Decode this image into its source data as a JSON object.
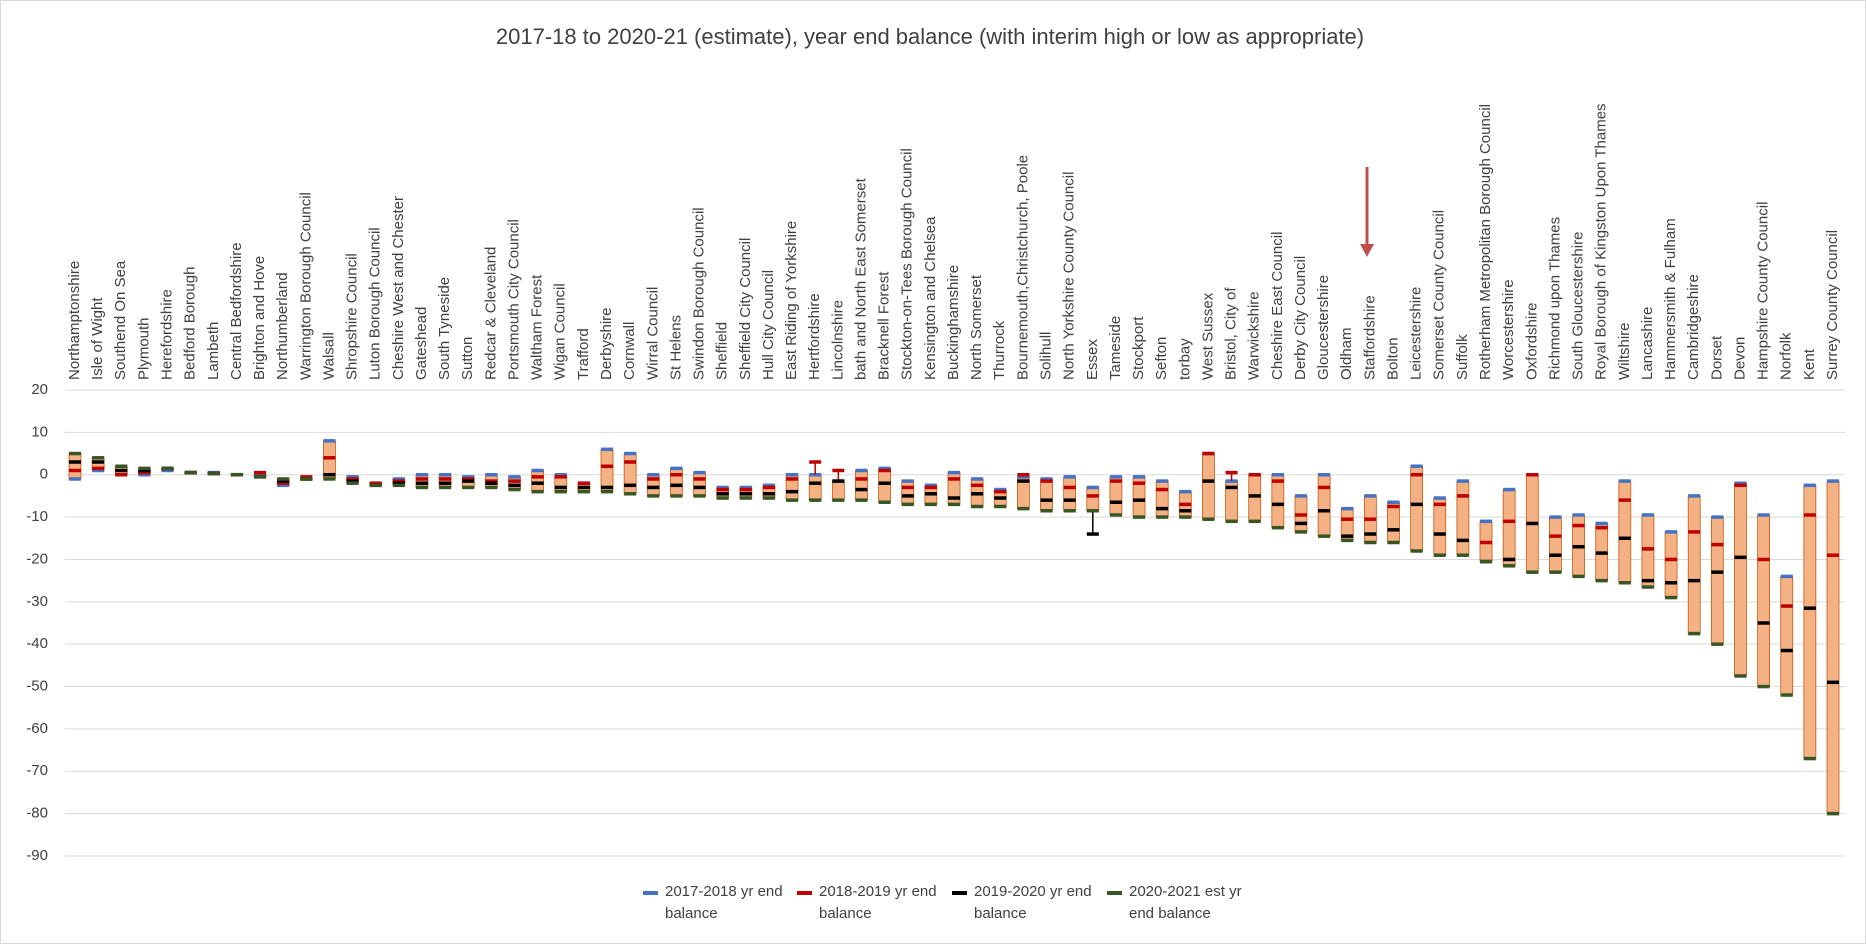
{
  "chart_data": {
    "type": "floating-bar",
    "title": "2017-18 to 2020-21 (estimate), year end balance (with interim high or low as appropriate)",
    "categories": [
      "Northamptonshire",
      "Isle of Wight",
      "Southend On Sea",
      "Plymouth",
      "Herefordshire",
      "Bedford Borough",
      "Lambeth",
      "Central Bedfordshire",
      "Brighton and Hove",
      "Northumberland",
      "Warrington Borough Council",
      "Walsall",
      "Shropshire Council",
      "Luton Borough Council",
      "Cheshire West and Chester",
      "Gateshead",
      "South Tyneside",
      "Sutton",
      "Redcar & Cleveland",
      "Portsmouth City Council",
      "Waltham Forest",
      "Wigan Council",
      "Trafford",
      "Derbyshire",
      "Cornwall",
      "Wirral Council",
      "St Helens",
      "Swindon Borough Council",
      "Sheffield",
      "Sheffield City Council",
      "Hull City Council",
      "East Riding of Yorkshire",
      "Hertfordshire",
      "Lincolnshire",
      "bath and North East Somerset",
      "Bracknell Forest",
      "Stockton-on-Tees Borough Council",
      "Kensington and Chelsea",
      "Buckinghamshire",
      "North Somerset",
      "Thurrock",
      "Bournemouth,Christchurch, Poole",
      "Solihull",
      "North Yorkshire County Council",
      "Essex",
      "Tameside",
      "Stockport",
      "Sefton",
      "torbay",
      "West Sussex",
      "Bristol, City of",
      "Warwickshire",
      "Cheshire East Council",
      "Derby City Council",
      "Gloucestershire",
      "Oldham",
      "Staffordshire",
      "Bolton",
      "Leicestershire",
      "Somerset County Council",
      "Suffolk",
      "Rotherham Metropolitan Borough Council",
      "Worcestershire",
      "Oxfordshire",
      "Richmond upon Thames",
      "South Gloucestershire",
      "Royal Borough of Kingston Upon Thames",
      "Wiltshire",
      "Lancashire",
      "Hammersmith & Fulham",
      "Cambridgeshire",
      "Dorset",
      "Devon",
      "Hampshire County Council",
      "Norfolk",
      "Kent",
      "Surrey County Council"
    ],
    "series": [
      {
        "name": "2017-2018 yr end balance",
        "color": "#4472c4",
        "values": [
          -1,
          1,
          0,
          0,
          1,
          0.5,
          0.5,
          0,
          0,
          -2.5,
          -1,
          8,
          -0.5,
          -2,
          -1,
          0,
          0,
          -0.5,
          0,
          -0.5,
          1,
          0,
          -2,
          6,
          5,
          0,
          1.5,
          0.5,
          -3,
          -3,
          -2.5,
          0,
          0,
          -1.5,
          1,
          1.5,
          -1.5,
          -2.5,
          0.5,
          -1,
          -3.5,
          -0.5,
          -1,
          -0.5,
          -3,
          -0.5,
          -0.5,
          -1.5,
          -4,
          5,
          -1.5,
          0,
          0,
          -5,
          0,
          -8,
          -5,
          -6.5,
          2,
          -5.5,
          -1.5,
          -11,
          -3.5,
          0,
          -10,
          -9.5,
          -11.5,
          -1.5,
          -9.5,
          -13.5,
          -5,
          -10,
          -2,
          -9.5,
          -24,
          -2.5,
          -1.5
        ]
      },
      {
        "name": "2018-2019 yr end balance",
        "color": "#c00000",
        "values": [
          1,
          1.5,
          0,
          0.5,
          1.5,
          0.5,
          0.3,
          0,
          0.5,
          -2,
          -0.5,
          4,
          -1,
          -2,
          -1.5,
          -1,
          -1,
          -1,
          -1.5,
          -1.5,
          -0.5,
          -0.5,
          -2,
          2,
          3,
          -1,
          0,
          -1,
          -3.5,
          -3.5,
          -3,
          -1,
          3,
          1,
          -1,
          1,
          -3,
          -3,
          -1,
          -2.5,
          -4,
          0,
          -1.5,
          -3,
          -5,
          -1.5,
          -2,
          -3.5,
          -7,
          5,
          0.5,
          0,
          -1.5,
          -9.5,
          -3,
          -10.5,
          -10.5,
          -7.5,
          0,
          -7,
          -5,
          -16,
          -11,
          0,
          -14.5,
          -12,
          -12.5,
          -6,
          -17.5,
          -20,
          -13.5,
          -16.5,
          -2.5,
          -20,
          -31,
          -9.5,
          -19
        ]
      },
      {
        "name": "2019-2020 yr end balance",
        "color": "#000000",
        "values": [
          3,
          3,
          1,
          1,
          1.5,
          0.5,
          0.3,
          0,
          -0.5,
          -1.5,
          -1,
          0,
          -1.5,
          -2.5,
          -2,
          -2,
          -2,
          -1.5,
          -2,
          -2.5,
          -2,
          -3,
          -3,
          -3,
          -2.5,
          -3,
          -2.5,
          -3,
          -4.5,
          -4.5,
          -4.5,
          -4,
          -2,
          -1.5,
          -3.5,
          -2,
          -5,
          -4.5,
          -5.5,
          -4.5,
          -5.5,
          -1.5,
          -6,
          -6,
          -14,
          -6.5,
          -6,
          -8,
          -8.5,
          -1.5,
          -3,
          -5,
          -7,
          -11.5,
          -8.5,
          -14.5,
          -14,
          -13,
          -7,
          -14,
          -15.5,
          -20.5,
          -20,
          -11.5,
          -19,
          -17,
          -18.5,
          -15,
          -25,
          -25.5,
          -25,
          -23,
          -19.5,
          -35,
          -41.5,
          -31.5,
          -49
        ]
      },
      {
        "name": "2020-2021 est yr end balance",
        "color": "#375623",
        "values": [
          5,
          4,
          2,
          1.5,
          1.5,
          0.5,
          0.3,
          0,
          -0.5,
          -1,
          -1,
          -1,
          -2,
          -2.5,
          -2.5,
          -3,
          -3,
          -3,
          -3,
          -3.5,
          -4,
          -4,
          -4,
          -4,
          -4.5,
          -5,
          -5,
          -5,
          -5.5,
          -5.5,
          -5.5,
          -6,
          -6,
          -6,
          -6,
          -6.5,
          -7,
          -7,
          -7,
          -7.5,
          -7.5,
          -8,
          -8.5,
          -8.5,
          -8.5,
          -9.5,
          -10,
          -10,
          -10,
          -10.5,
          -11,
          -11,
          -12.5,
          -13.5,
          -14.5,
          -15.5,
          -16,
          -16,
          -18,
          -19,
          -19,
          -20.5,
          -21.5,
          -23,
          -23,
          -24,
          -25,
          -25.5,
          -26.5,
          -29,
          -37.5,
          -40,
          -47.5,
          -50,
          -52,
          -67,
          -80
        ]
      }
    ],
    "ylim": [
      -90,
      20
    ],
    "yticks": [
      20,
      10,
      0,
      -10,
      -20,
      -30,
      -40,
      -50,
      -60,
      -70,
      -80,
      -90
    ],
    "grid": true,
    "legend": "bottom"
  }
}
